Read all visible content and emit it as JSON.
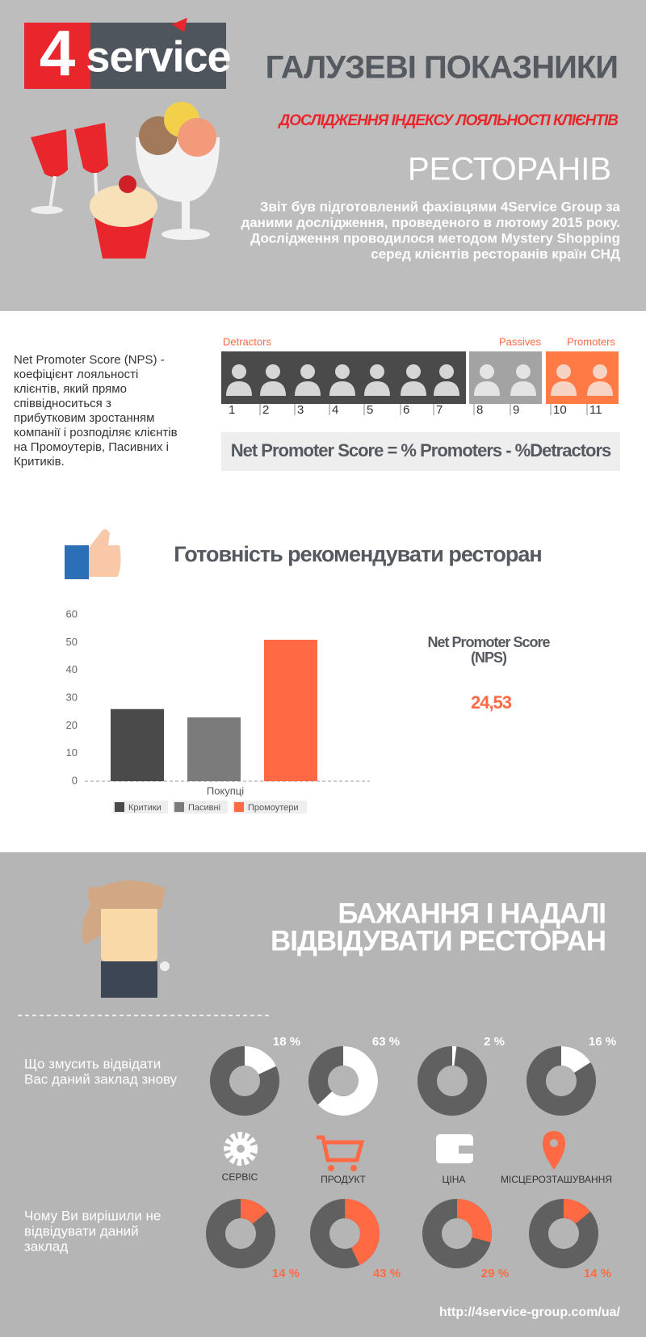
{
  "header": {
    "logo": [
      "4",
      "service"
    ],
    "title": "ГАЛУЗЕВІ ПОКАЗНИКИ",
    "subtitle": "ДОСЛІДЖЕННЯ ІНДЕКСУ ЛОЯЛЬНОСТІ КЛІЄНТІВ",
    "heading": "РЕСТОРАНІВ",
    "intro": [
      "Звіт був підготовлений фахівцями 4Service Group за",
      "даними дослідження, проведеного в лютому 2015 року.",
      "Дослідження проводилося методом Mystery Shopping",
      "серед клієнтів ресторанів країн СНД"
    ]
  },
  "nps": {
    "description": [
      "Net Promoter Score (NPS) -",
      "коефіцієнт лояльності",
      "клієнтів, який прямо",
      "співвідноситься з",
      "прибутковим зростанням",
      "компанії і розподіляє клієнтів",
      "на Промоутерів, Пасивних і",
      "Критиків."
    ],
    "groups": [
      "Detractors",
      "Passives",
      "Promoters"
    ],
    "scale": [
      1,
      2,
      3,
      4,
      5,
      6,
      7,
      8,
      9,
      10,
      11
    ],
    "formula": "Net Promoter Score  =  % Promoters - %Detractors"
  },
  "recommend": {
    "title": "Готовність рекомендувати ресторан",
    "chart": {
      "type": "bar",
      "categories": [
        "Покупці"
      ],
      "series": [
        {
          "name": "Критики",
          "color": "#4a4a4a",
          "values": [
            26
          ]
        },
        {
          "name": "Пасивні",
          "color": "#7b7b7b",
          "values": [
            23
          ]
        },
        {
          "name": "Промоутери",
          "color": "#ff6a45",
          "values": [
            51
          ]
        }
      ],
      "ylim": [
        0,
        60
      ],
      "yticks": [
        0,
        10,
        20,
        30,
        40,
        50,
        60
      ]
    },
    "nps_label": [
      "Net Promoter Score",
      "(NPS)"
    ],
    "nps_value": "24,53"
  },
  "revisit": {
    "title": [
      "БАЖАННЯ І НАДАЛІ",
      "ВІДВІДУВАТИ РЕСТОРАН"
    ],
    "reasons": {
      "label": [
        "Що змусить відвідати",
        "Вас даний заклад знову"
      ],
      "values": [
        18,
        63,
        2,
        16
      ],
      "value_labels": [
        "18 %",
        "63 %",
        "2 %",
        "16 %"
      ]
    },
    "factors": [
      "СЕРВІС",
      "ПРОДУКТ",
      "ЦІНА",
      "МІСЦЕРОЗТАШУВАННЯ"
    ],
    "barriers": {
      "label": [
        "Чому Ви вирішили не",
        "відвідувати даний",
        "заклад"
      ],
      "values": [
        14,
        43,
        29,
        14
      ],
      "value_labels": [
        "14 %",
        "43 %",
        "29 %",
        "14 %"
      ]
    }
  },
  "footer": {
    "url": "http://4service-group.com/ua/"
  }
}
